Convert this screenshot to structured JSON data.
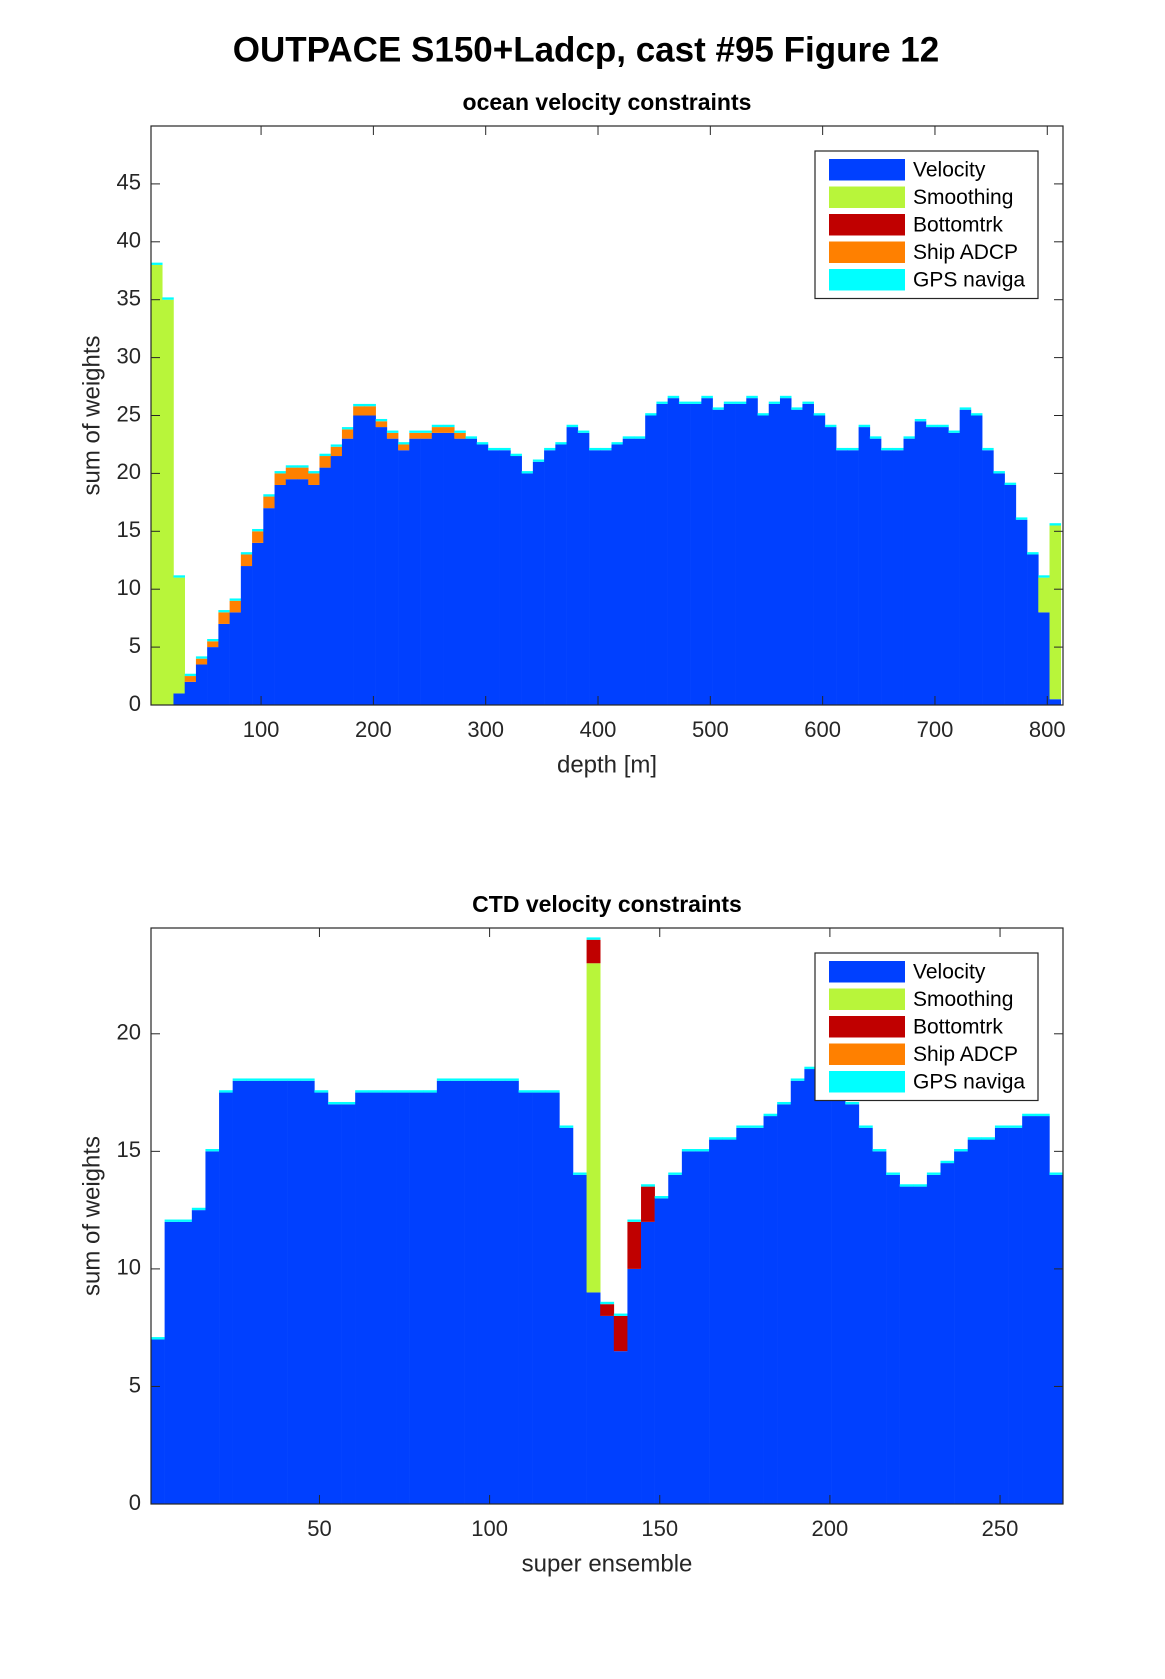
{
  "title": "OUTPACE S150+Ladcp, cast #95  Figure 12",
  "chart_data": [
    {
      "type": "bar",
      "stacked": true,
      "title": "ocean velocity constraints",
      "xlabel": "depth [m]",
      "ylabel": "sum of weights",
      "xlim": [
        2,
        814
      ],
      "ylim": [
        0,
        50
      ],
      "xticks": [
        100,
        200,
        300,
        400,
        500,
        600,
        700,
        800
      ],
      "yticks": [
        0,
        5,
        10,
        15,
        20,
        25,
        30,
        35,
        40,
        45
      ],
      "legend": "northeast",
      "x": [
        7,
        17,
        27,
        37,
        47,
        57,
        67,
        77,
        87,
        97,
        107,
        117,
        127,
        137,
        147,
        157,
        167,
        177,
        187,
        197,
        207,
        217,
        227,
        237,
        247,
        257,
        267,
        277,
        287,
        297,
        307,
        317,
        327,
        337,
        347,
        357,
        367,
        377,
        387,
        397,
        407,
        417,
        427,
        437,
        447,
        457,
        467,
        477,
        487,
        497,
        507,
        517,
        527,
        537,
        547,
        557,
        567,
        577,
        587,
        597,
        607,
        617,
        627,
        637,
        647,
        657,
        667,
        677,
        687,
        697,
        707,
        717,
        727,
        737,
        747,
        757,
        767,
        777,
        787,
        797,
        807
      ],
      "series": [
        {
          "name": "Velocity",
          "color": "#0040ff",
          "values": [
            0,
            0,
            1,
            2,
            3.5,
            5,
            7,
            8,
            12,
            14,
            17,
            19,
            19.5,
            19.5,
            19,
            20.5,
            21.5,
            23,
            25,
            25,
            24,
            23,
            22,
            23,
            23,
            23.5,
            23.5,
            23,
            23,
            22.5,
            22,
            22,
            21.5,
            20,
            21,
            22,
            22.5,
            24,
            23.5,
            22,
            22,
            22.5,
            23,
            23,
            25,
            26,
            26.5,
            26,
            26,
            26.5,
            25.5,
            26,
            26,
            26.5,
            25,
            26,
            26.5,
            25.5,
            26,
            25,
            24,
            22,
            22,
            24,
            23,
            22,
            22,
            23,
            24.5,
            24,
            24,
            23.5,
            25.5,
            25,
            22,
            20,
            19,
            16,
            13,
            8,
            0.5
          ]
        },
        {
          "name": "Smoothing",
          "color": "#b8f53a",
          "values": [
            38,
            35,
            10,
            0,
            0,
            0,
            0,
            0,
            0,
            0,
            0,
            0,
            0,
            0,
            0,
            0,
            0,
            0,
            0,
            0,
            0,
            0,
            0,
            0,
            0,
            0,
            0,
            0,
            0,
            0,
            0,
            0,
            0,
            0,
            0,
            0,
            0,
            0,
            0,
            0,
            0,
            0,
            0,
            0,
            0,
            0,
            0,
            0,
            0,
            0,
            0,
            0,
            0,
            0,
            0,
            0,
            0,
            0,
            0,
            0,
            0,
            0,
            0,
            0,
            0,
            0,
            0,
            0,
            0,
            0,
            0,
            0,
            0,
            0,
            0,
            0,
            0,
            0,
            0,
            3,
            15
          ]
        },
        {
          "name": "Bottomtrk",
          "color": "#c00000",
          "values": [
            0,
            0,
            0,
            0,
            0,
            0,
            0,
            0,
            0,
            0,
            0,
            0,
            0,
            0,
            0,
            0,
            0,
            0,
            0,
            0,
            0,
            0,
            0,
            0,
            0,
            0,
            0,
            0,
            0,
            0,
            0,
            0,
            0,
            0,
            0,
            0,
            0,
            0,
            0,
            0,
            0,
            0,
            0,
            0,
            0,
            0,
            0,
            0,
            0,
            0,
            0,
            0,
            0,
            0,
            0,
            0,
            0,
            0,
            0,
            0,
            0,
            0,
            0,
            0,
            0,
            0,
            0,
            0,
            0,
            0,
            0,
            0,
            0,
            0,
            0,
            0,
            0,
            0,
            0,
            0,
            0
          ]
        },
        {
          "name": "Ship ADCP",
          "color": "#ff8000",
          "values": [
            0,
            0,
            0,
            0.5,
            0.5,
            0.5,
            1,
            1,
            1,
            1,
            1,
            1,
            1,
            1,
            1,
            1,
            0.8,
            0.8,
            0.8,
            0.8,
            0.5,
            0.5,
            0.5,
            0.5,
            0.5,
            0.5,
            0.5,
            0.5,
            0,
            0,
            0,
            0,
            0,
            0,
            0,
            0,
            0,
            0,
            0,
            0,
            0,
            0,
            0,
            0,
            0,
            0,
            0,
            0,
            0,
            0,
            0,
            0,
            0,
            0,
            0,
            0,
            0,
            0,
            0,
            0,
            0,
            0,
            0,
            0,
            0,
            0,
            0,
            0,
            0,
            0,
            0,
            0,
            0,
            0,
            0,
            0,
            0,
            0,
            0,
            0,
            0
          ]
        },
        {
          "name": "GPS naviga",
          "color": "#00ffff",
          "values": [
            0.2,
            0.2,
            0.2,
            0.2,
            0.2,
            0.2,
            0.2,
            0.2,
            0.2,
            0.2,
            0.2,
            0.2,
            0.2,
            0.2,
            0.2,
            0.2,
            0.2,
            0.2,
            0.2,
            0.2,
            0.2,
            0.2,
            0.2,
            0.2,
            0.2,
            0.2,
            0.2,
            0.2,
            0.2,
            0.2,
            0.2,
            0.2,
            0.2,
            0.2,
            0.2,
            0.2,
            0.2,
            0.2,
            0.2,
            0.2,
            0.2,
            0.2,
            0.2,
            0.2,
            0.2,
            0.2,
            0.2,
            0.2,
            0.2,
            0.2,
            0.2,
            0.2,
            0.2,
            0.2,
            0.2,
            0.2,
            0.2,
            0.2,
            0.2,
            0.2,
            0.2,
            0.2,
            0.2,
            0.2,
            0.2,
            0.2,
            0.2,
            0.2,
            0.2,
            0.2,
            0.2,
            0.2,
            0.2,
            0.2,
            0.2,
            0.2,
            0.2,
            0.2,
            0.2,
            0.2,
            0.2
          ]
        }
      ]
    },
    {
      "type": "bar",
      "stacked": true,
      "title": "CTD velocity constraints",
      "xlabel": "super ensemble",
      "ylabel": "sum of weights",
      "xlim": [
        0.5,
        268.5
      ],
      "ylim": [
        0,
        24.5
      ],
      "xticks": [
        50,
        100,
        150,
        200,
        250
      ],
      "yticks": [
        0,
        5,
        10,
        15,
        20
      ],
      "legend": "northeast",
      "x": [
        2.5,
        6.5,
        10.5,
        14.5,
        18.5,
        22.5,
        26.5,
        30.5,
        34.5,
        38.5,
        42.5,
        46.5,
        50.5,
        54.5,
        58.5,
        62.5,
        66.5,
        70.5,
        74.5,
        78.5,
        82.5,
        86.5,
        90.5,
        94.5,
        98.5,
        102.5,
        106.5,
        110.5,
        114.5,
        118.5,
        122.5,
        126.5,
        130.5,
        134.5,
        138.5,
        142.5,
        146.5,
        150.5,
        154.5,
        158.5,
        162.5,
        166.5,
        170.5,
        174.5,
        178.5,
        182.5,
        186.5,
        190.5,
        194.5,
        198.5,
        202.5,
        206.5,
        210.5,
        214.5,
        218.5,
        222.5,
        226.5,
        230.5,
        234.5,
        238.5,
        242.5,
        246.5,
        250.5,
        254.5,
        258.5,
        262.5,
        266.5
      ],
      "series": [
        {
          "name": "Velocity",
          "color": "#0040ff",
          "values": [
            7,
            12,
            12,
            12.5,
            15,
            17.5,
            18,
            18,
            18,
            18,
            18,
            18,
            17.5,
            17,
            17,
            17.5,
            17.5,
            17.5,
            17.5,
            17.5,
            17.5,
            18,
            18,
            18,
            18,
            18,
            18,
            17.5,
            17.5,
            17.5,
            16,
            14,
            9,
            8,
            6.5,
            10,
            12,
            13,
            14,
            15,
            15,
            15.5,
            15.5,
            16,
            16,
            16.5,
            17,
            18,
            18.5,
            18,
            17.5,
            17,
            16,
            15,
            14,
            13.5,
            13.5,
            14,
            14.5,
            15,
            15.5,
            15.5,
            16,
            16,
            16.5,
            16.5,
            14
          ]
        },
        {
          "name": "Smoothing",
          "color": "#b8f53a",
          "values": [
            0,
            0,
            0,
            0,
            0,
            0,
            0,
            0,
            0,
            0,
            0,
            0,
            0,
            0,
            0,
            0,
            0,
            0,
            0,
            0,
            0,
            0,
            0,
            0,
            0,
            0,
            0,
            0,
            0,
            0,
            0,
            0,
            14,
            0,
            0,
            0,
            0,
            0,
            0,
            0,
            0,
            0,
            0,
            0,
            0,
            0,
            0,
            0,
            0,
            0,
            0,
            0,
            0,
            0,
            0,
            0,
            0,
            0,
            0,
            0,
            0,
            0,
            0,
            0,
            0,
            0,
            0
          ]
        },
        {
          "name": "Bottomtrk",
          "color": "#c00000",
          "values": [
            0,
            0,
            0,
            0,
            0,
            0,
            0,
            0,
            0,
            0,
            0,
            0,
            0,
            0,
            0,
            0,
            0,
            0,
            0,
            0,
            0,
            0,
            0,
            0,
            0,
            0,
            0,
            0,
            0,
            0,
            0,
            0,
            1,
            0.5,
            1.5,
            2,
            1.5,
            0,
            0,
            0,
            0,
            0,
            0,
            0,
            0,
            0,
            0,
            0,
            0,
            0,
            0,
            0,
            0,
            0,
            0,
            0,
            0,
            0,
            0,
            0,
            0,
            0,
            0,
            0,
            0,
            0,
            0
          ]
        },
        {
          "name": "Ship ADCP",
          "color": "#ff8000",
          "values": [
            0,
            0,
            0,
            0,
            0,
            0,
            0,
            0,
            0,
            0,
            0,
            0,
            0,
            0,
            0,
            0,
            0,
            0,
            0,
            0,
            0,
            0,
            0,
            0,
            0,
            0,
            0,
            0,
            0,
            0,
            0,
            0,
            0,
            0,
            0,
            0,
            0,
            0,
            0,
            0,
            0,
            0,
            0,
            0,
            0,
            0,
            0,
            0,
            0,
            0,
            0,
            0,
            0,
            0,
            0,
            0,
            0,
            0,
            0,
            0,
            0,
            0,
            0,
            0,
            0,
            0,
            0
          ]
        },
        {
          "name": "GPS naviga",
          "color": "#00ffff",
          "values": [
            0.1,
            0.1,
            0.1,
            0.1,
            0.1,
            0.1,
            0.1,
            0.1,
            0.1,
            0.1,
            0.1,
            0.1,
            0.1,
            0.1,
            0.1,
            0.1,
            0.1,
            0.1,
            0.1,
            0.1,
            0.1,
            0.1,
            0.1,
            0.1,
            0.1,
            0.1,
            0.1,
            0.1,
            0.1,
            0.1,
            0.1,
            0.1,
            0.1,
            0.1,
            0.1,
            0.1,
            0.1,
            0.1,
            0.1,
            0.1,
            0.1,
            0.1,
            0.1,
            0.1,
            0.1,
            0.1,
            0.1,
            0.1,
            0.1,
            0.1,
            0.1,
            0.1,
            0.1,
            0.1,
            0.1,
            0.1,
            0.1,
            0.1,
            0.1,
            0.1,
            0.1,
            0.1,
            0.1,
            0.1,
            0.1,
            0.1,
            0.1
          ]
        }
      ]
    }
  ]
}
